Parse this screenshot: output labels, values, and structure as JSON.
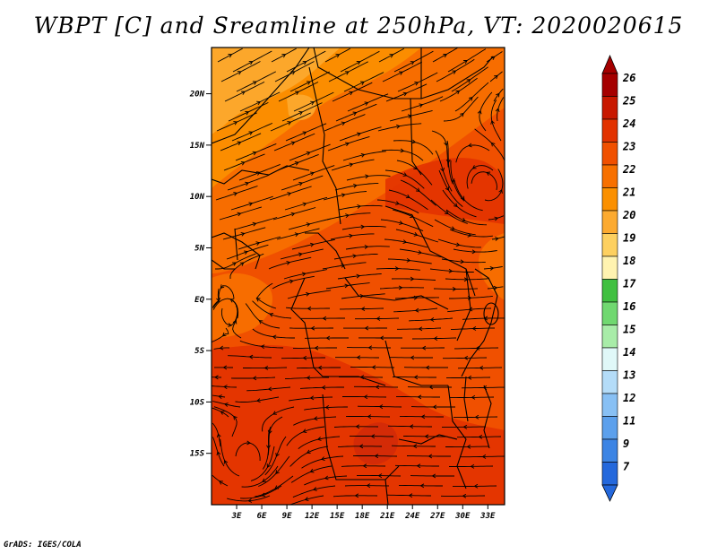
{
  "title": "WBPT [C] and Sreamline at 250hPa, VT: 2020020615",
  "credit": "GrADS: IGES/COLA",
  "map": {
    "lon_labels": [
      "3E",
      "6E",
      "9E",
      "12E",
      "15E",
      "18E",
      "21E",
      "24E",
      "27E",
      "30E",
      "33E"
    ],
    "lat_labels": [
      "20N",
      "15N",
      "10N",
      "5N",
      "EQ",
      "5S",
      "10S",
      "15S"
    ],
    "lon_range": [
      0,
      35
    ],
    "lat_range": [
      -20,
      24.5
    ]
  },
  "colorbar": {
    "levels": [
      "26",
      "25",
      "24",
      "23",
      "22",
      "21",
      "20",
      "19",
      "18",
      "17",
      "16",
      "15",
      "14",
      "13",
      "12",
      "11",
      "9",
      "7"
    ],
    "colors": [
      "#a50000",
      "#c81800",
      "#e23200",
      "#f05000",
      "#f77000",
      "#fb9000",
      "#fcaa30",
      "#fdd060",
      "#fff3b0",
      "#40c040",
      "#70d870",
      "#a8eca8",
      "#e0f8f8",
      "#b4dcf8",
      "#88c0f4",
      "#5ca0ec",
      "#3c84e4",
      "#2468dc"
    ],
    "top_arrow_color": "#a50000",
    "bottom_arrow_color": "#2468dc"
  },
  "field_colors": {
    "c20": "#fcaa30",
    "c21": "#fb9000",
    "c22": "#f77000",
    "c23": "#f05000",
    "c24": "#e23200"
  }
}
